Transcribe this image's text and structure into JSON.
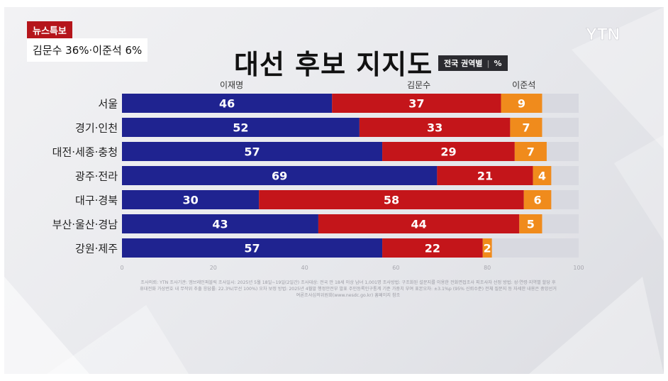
{
  "news": {
    "tag": "뉴스특보",
    "headline": "김문수 36%·이준석 6%"
  },
  "logo": "YTN",
  "title": "대선 후보 지지도",
  "subtitle": {
    "scope": "전국 권역별",
    "unit": "%"
  },
  "footnote": "조사의뢰: YTN 조사기관: 엠브레인퍼블릭 조사일시: 2025년 5월 18일~19일(2일간) 조사대상: 전국 만 18세 이상 남녀 1,001명 조사방법: 구조화된 설문지를 이용한 전화면접조사 피조사자 선정 방법: 성·연령·지역별 할당 후 휴대전화 가상번호 내 무작위 추출 응답률: 22.3%(무선 100%) 오차 보정 방법: 2025년 4월말 행정안전부 발표 주민등록인구통계 기준 가중치 부여 표본오차: ±3.1%p (95% 신뢰수준) 전체 질문지 등 자세한 내용은 중앙선거여론조사심의위원회(www.nesdc.go.kr) 홈페이지 참조",
  "colors": {
    "lee": "#1f2390",
    "kim": "#c4151a",
    "lee_js": "#f08b1c",
    "rest": "#d8d9e0"
  },
  "chart_data": {
    "type": "bar",
    "orientation": "horizontal",
    "stacked": true,
    "title": "대선 후보 지지도",
    "categories": [
      "서울",
      "경기·인천",
      "대전·세종·충청",
      "광주·전라",
      "대구·경북",
      "부산·울산·경남",
      "강원·제주"
    ],
    "series": [
      {
        "name": "이재명",
        "color": "#1f2390",
        "values": [
          46,
          52,
          57,
          69,
          30,
          43,
          57
        ]
      },
      {
        "name": "김문수",
        "color": "#c4151a",
        "values": [
          37,
          33,
          29,
          21,
          58,
          44,
          22
        ]
      },
      {
        "name": "이준석",
        "color": "#f08b1c",
        "values": [
          9,
          7,
          7,
          4,
          6,
          5,
          2
        ]
      }
    ],
    "xlim": [
      0,
      100
    ],
    "xticks": [
      "0",
      "20",
      "40",
      "60",
      "80",
      "100"
    ],
    "legend": "top",
    "grid": false
  }
}
